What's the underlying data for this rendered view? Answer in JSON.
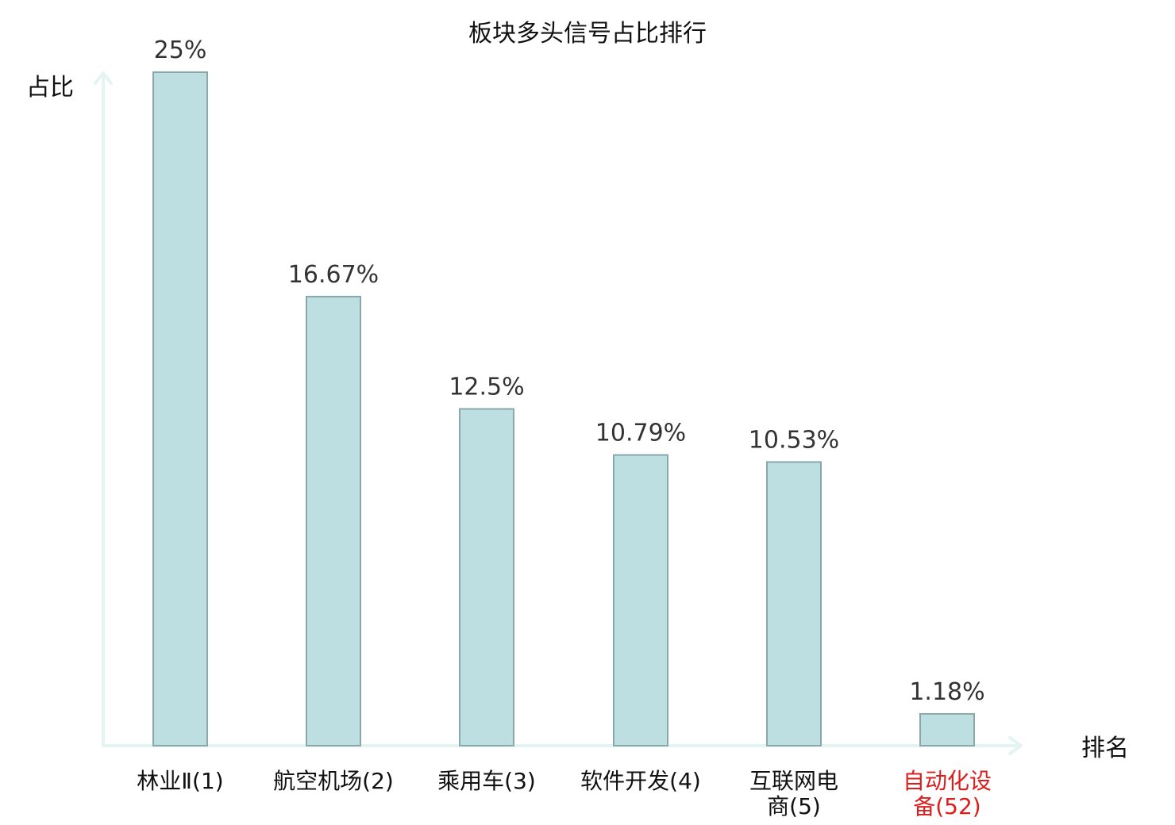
{
  "chart_data": {
    "type": "bar",
    "title": "板块多头信号占比排行",
    "ylabel": "占比",
    "xlabel": "排名",
    "ylim": [
      0,
      25
    ],
    "grid": false,
    "legend": "none",
    "categories": [
      {
        "name": "林业Ⅱ",
        "rank": "(1)"
      },
      {
        "name": "航空机场",
        "rank": "(2)"
      },
      {
        "name": "乘用车",
        "rank": "(3)"
      },
      {
        "name": "软件开发",
        "rank": "(4)"
      },
      {
        "name": "互联网电商",
        "rank": "(5)"
      },
      {
        "name": "自动化设备",
        "rank": "(52)"
      }
    ],
    "values": [
      25,
      16.67,
      12.5,
      10.79,
      10.53,
      1.18
    ],
    "value_labels": [
      "25%",
      "16.67%",
      "12.5%",
      "10.79%",
      "10.53%",
      "1.18%"
    ],
    "highlight_index": 5
  },
  "colors": {
    "bar_fill": "#bddfe2",
    "bar_stroke": "#8aa7aa",
    "axis": "#e4f4f2",
    "highlight_text": "#dd1c1c",
    "text": "#111111"
  }
}
